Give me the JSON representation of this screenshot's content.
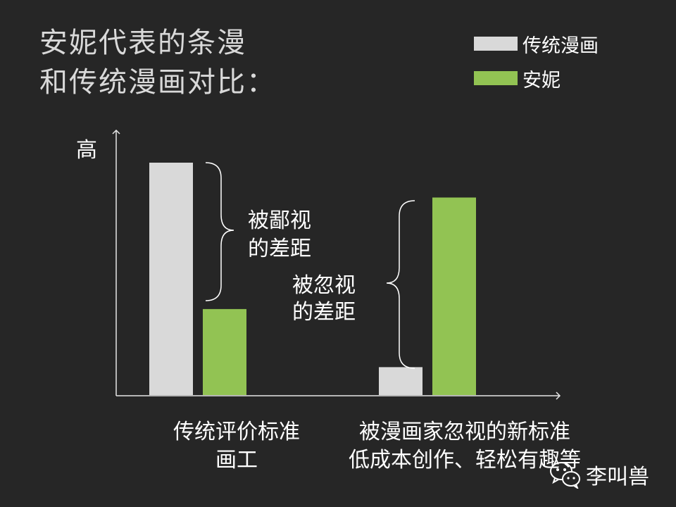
{
  "title": {
    "line1": "安妮代表的条漫",
    "line2": "和传统漫画对比："
  },
  "legend": [
    {
      "label": "传统漫画",
      "color": "#d9d9d9"
    },
    {
      "label": "安妮",
      "color": "#92c353"
    }
  ],
  "annotations": {
    "left": {
      "line1": "被鄙视",
      "line2": "的差距"
    },
    "right": {
      "line1": "被忽视",
      "line2": "的差距"
    }
  },
  "chart_data": {
    "type": "bar",
    "ylabel": "高",
    "xlabel": "",
    "ylim": [
      0,
      100
    ],
    "category_lines": [
      [
        "传统评价标准",
        "画工"
      ],
      [
        "被漫画家忽视的新标准",
        "低成本创作、轻松有趣等"
      ]
    ],
    "series": [
      {
        "name": "传统漫画",
        "values": [
          100,
          12
        ]
      },
      {
        "name": "安妮",
        "values": [
          37,
          85
        ]
      }
    ],
    "colors": [
      "#d9d9d9",
      "#92c353"
    ],
    "legend_position": "top-right",
    "grid": false
  },
  "watermark": {
    "text": "李叫兽",
    "icon": "wechat-icon"
  }
}
